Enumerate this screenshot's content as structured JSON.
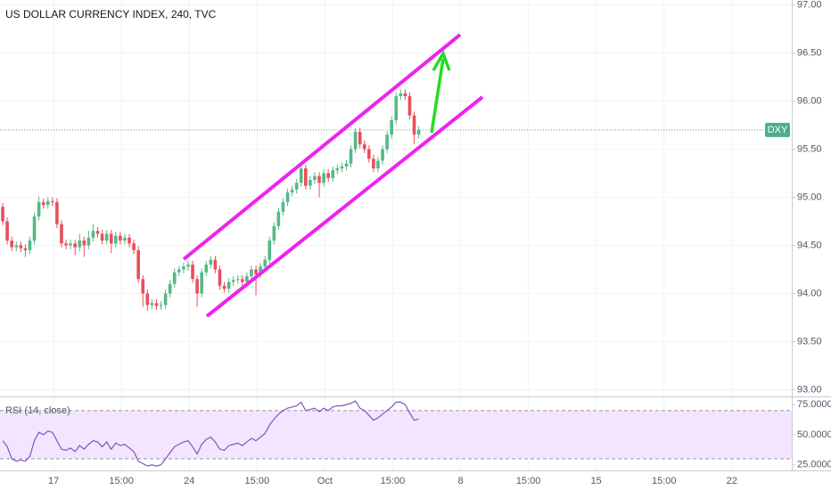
{
  "chart_data": [
    {
      "type": "candlestick",
      "title": "US DOLLAR CURRENCY INDEX, 240, TVC",
      "open": [
        94.9,
        94.75,
        94.55,
        94.48,
        94.5,
        94.47,
        94.45,
        94.55,
        94.8,
        94.95,
        94.92,
        94.96,
        94.95,
        94.72,
        94.52,
        94.5,
        94.52,
        94.48,
        94.55,
        94.5,
        94.58,
        94.65,
        94.62,
        94.55,
        94.62,
        94.52,
        94.6,
        94.55,
        94.58,
        94.52,
        94.45,
        94.15,
        94.0,
        93.88,
        93.9,
        93.87,
        93.88,
        94.0,
        94.1,
        94.22,
        94.25,
        94.28,
        94.3,
        94.15,
        94.0,
        94.22,
        94.3,
        94.35,
        94.25,
        94.08,
        94.05,
        94.12,
        94.14,
        94.15,
        94.12,
        94.18,
        94.25,
        94.2,
        94.28,
        94.35,
        94.55,
        94.7,
        94.85,
        94.95,
        95.05,
        95.08,
        95.15,
        95.3,
        95.12,
        95.18,
        95.22,
        95.15,
        95.25,
        95.2,
        95.28,
        95.3,
        95.32,
        95.35,
        95.5,
        95.68,
        95.55,
        95.5,
        95.4,
        95.3,
        95.38,
        95.5,
        95.65,
        95.8,
        96.05,
        96.08,
        96.05,
        95.85,
        95.65
      ],
      "high": [
        94.94,
        94.79,
        94.59,
        94.54,
        94.54,
        94.51,
        94.59,
        94.84,
        95.01,
        94.99,
        95.0,
        95.0,
        94.99,
        94.76,
        94.56,
        94.56,
        94.56,
        94.62,
        94.59,
        94.65,
        94.72,
        94.69,
        94.66,
        94.66,
        94.66,
        94.64,
        94.64,
        94.62,
        94.62,
        94.56,
        94.49,
        94.19,
        94.04,
        93.94,
        93.94,
        93.92,
        94.04,
        94.14,
        94.26,
        94.29,
        94.32,
        94.34,
        94.34,
        94.19,
        94.26,
        94.34,
        94.39,
        94.39,
        94.29,
        94.12,
        94.16,
        94.18,
        94.19,
        94.19,
        94.22,
        94.29,
        94.29,
        94.32,
        94.39,
        94.59,
        94.74,
        94.89,
        94.99,
        95.09,
        95.12,
        95.19,
        95.34,
        95.34,
        95.22,
        95.26,
        95.26,
        95.29,
        95.29,
        95.32,
        95.34,
        95.36,
        95.39,
        95.54,
        95.72,
        95.72,
        95.59,
        95.54,
        95.44,
        95.42,
        95.54,
        95.69,
        95.84,
        96.09,
        96.12,
        96.12,
        96.09,
        95.89,
        95.74
      ],
      "low": [
        94.71,
        94.51,
        94.44,
        94.44,
        94.43,
        94.38,
        94.41,
        94.51,
        94.76,
        94.88,
        94.88,
        94.91,
        94.68,
        94.48,
        94.46,
        94.46,
        94.4,
        94.44,
        94.38,
        94.46,
        94.54,
        94.58,
        94.51,
        94.51,
        94.42,
        94.48,
        94.51,
        94.51,
        94.48,
        94.41,
        94.11,
        93.86,
        93.82,
        93.84,
        93.83,
        93.83,
        93.84,
        93.96,
        94.06,
        94.18,
        94.21,
        94.24,
        94.11,
        93.86,
        93.96,
        94.18,
        94.26,
        94.21,
        94.04,
        94.01,
        94.01,
        94.08,
        94.1,
        94.08,
        94.08,
        94.14,
        93.98,
        94.16,
        94.24,
        94.31,
        94.51,
        94.66,
        94.81,
        94.91,
        95.01,
        95.04,
        95.11,
        95.08,
        95.08,
        95.14,
        95.0,
        95.11,
        95.16,
        95.16,
        95.24,
        95.26,
        95.28,
        95.31,
        95.46,
        95.51,
        95.46,
        95.36,
        95.26,
        95.26,
        95.34,
        95.46,
        95.61,
        95.76,
        96.01,
        96.01,
        95.81,
        95.55,
        95.61
      ],
      "close": [
        94.75,
        94.55,
        94.48,
        94.5,
        94.47,
        94.45,
        94.55,
        94.8,
        94.95,
        94.92,
        94.96,
        94.95,
        94.72,
        94.52,
        94.5,
        94.52,
        94.48,
        94.55,
        94.5,
        94.58,
        94.65,
        94.62,
        94.55,
        94.62,
        94.52,
        94.6,
        94.55,
        94.58,
        94.52,
        94.45,
        94.15,
        94.0,
        93.88,
        93.9,
        93.87,
        93.88,
        94.0,
        94.1,
        94.22,
        94.25,
        94.28,
        94.3,
        94.15,
        94.0,
        94.22,
        94.3,
        94.35,
        94.25,
        94.08,
        94.05,
        94.12,
        94.14,
        94.15,
        94.12,
        94.18,
        94.25,
        94.2,
        94.28,
        94.35,
        94.55,
        94.7,
        94.85,
        94.95,
        95.05,
        95.08,
        95.15,
        95.3,
        95.12,
        95.18,
        95.22,
        95.15,
        95.25,
        95.2,
        95.28,
        95.3,
        95.32,
        95.35,
        95.5,
        95.68,
        95.55,
        95.5,
        95.4,
        95.3,
        95.38,
        95.5,
        95.65,
        95.8,
        96.05,
        96.08,
        96.05,
        95.85,
        95.65,
        95.7
      ],
      "up_color": "#53b987",
      "down_color": "#eb4d5c",
      "ylim": [
        92.93,
        97.05
      ],
      "yticks": [
        {
          "value": 93,
          "label": "93.00"
        },
        {
          "value": 93.5,
          "label": "93.50"
        },
        {
          "value": 94,
          "label": "94.00"
        },
        {
          "value": 94.5,
          "label": "94.50"
        },
        {
          "value": 95,
          "label": "95.00"
        },
        {
          "value": 95.5,
          "label": "95.50"
        },
        {
          "value": 96,
          "label": "96.00"
        },
        {
          "value": 96.5,
          "label": "96.50"
        },
        {
          "value": 97,
          "label": "97.00"
        }
      ],
      "xlim": [
        -0.6,
        174.5
      ],
      "xticks": [
        {
          "value": 11.25,
          "label": "17"
        },
        {
          "value": 26.25,
          "label": "15:00"
        },
        {
          "value": 41.25,
          "label": "24"
        },
        {
          "value": 56.25,
          "label": "15:00"
        },
        {
          "value": 71.25,
          "label": "Oct"
        },
        {
          "value": 86.25,
          "label": "15:00"
        },
        {
          "value": 101.25,
          "label": "8"
        },
        {
          "value": 116.25,
          "label": "15:00"
        },
        {
          "value": 131.25,
          "label": "15"
        },
        {
          "value": 146.25,
          "label": "15:00"
        },
        {
          "value": 161.25,
          "label": "22"
        }
      ],
      "price_line": {
        "label": "DXY",
        "value": 95.7,
        "color": "#4caf89"
      },
      "grid": true
    },
    {
      "type": "line",
      "title": "RSI (14, close)",
      "color": "#7e57c2",
      "band": [
        30,
        70
      ],
      "band_color": "#f3e5ff",
      "values": [
        45,
        40,
        30,
        28,
        29,
        28,
        32,
        45,
        52,
        50,
        53,
        52,
        45,
        38,
        37,
        39,
        36,
        41,
        38,
        42,
        45,
        44,
        40,
        44,
        38,
        43,
        41,
        42,
        39,
        36,
        28,
        26,
        24,
        25,
        24,
        25,
        30,
        35,
        40,
        42,
        44,
        45,
        40,
        34,
        42,
        46,
        48,
        44,
        38,
        37,
        41,
        42,
        43,
        41,
        44,
        47,
        45,
        48,
        51,
        58,
        63,
        67,
        70,
        72,
        73,
        74,
        77,
        70,
        71,
        72,
        69,
        72,
        70,
        73,
        74,
        74,
        75,
        76,
        78,
        72,
        70,
        66,
        62,
        64,
        67,
        70,
        73,
        77,
        77,
        75,
        68,
        62,
        63
      ],
      "ylim": [
        20,
        81
      ],
      "yticks": [
        {
          "value": 25,
          "label": "25.0000"
        },
        {
          "value": 50,
          "label": "50.0000"
        },
        {
          "value": 75,
          "label": "75.0000"
        }
      ]
    }
  ]
}
